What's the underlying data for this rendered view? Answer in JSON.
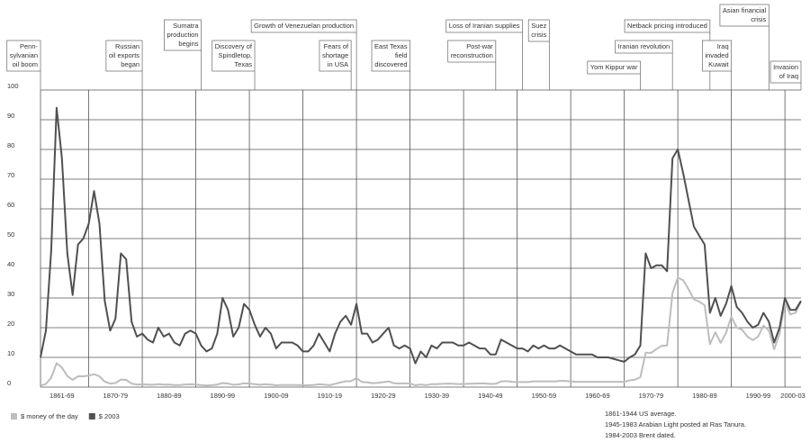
{
  "chart_data": {
    "type": "line",
    "x": [
      1861,
      1862,
      1863,
      1864,
      1865,
      1866,
      1867,
      1868,
      1869,
      1870,
      1871,
      1872,
      1873,
      1874,
      1875,
      1876,
      1877,
      1878,
      1879,
      1880,
      1881,
      1882,
      1883,
      1884,
      1885,
      1886,
      1887,
      1888,
      1889,
      1890,
      1891,
      1892,
      1893,
      1894,
      1895,
      1896,
      1897,
      1898,
      1899,
      1900,
      1901,
      1902,
      1903,
      1904,
      1905,
      1906,
      1907,
      1908,
      1909,
      1910,
      1911,
      1912,
      1913,
      1914,
      1915,
      1916,
      1917,
      1918,
      1919,
      1920,
      1921,
      1922,
      1923,
      1924,
      1925,
      1926,
      1927,
      1928,
      1929,
      1930,
      1931,
      1932,
      1933,
      1934,
      1935,
      1936,
      1937,
      1938,
      1939,
      1940,
      1941,
      1942,
      1943,
      1944,
      1945,
      1946,
      1947,
      1948,
      1949,
      1950,
      1951,
      1952,
      1953,
      1954,
      1955,
      1956,
      1957,
      1958,
      1959,
      1960,
      1961,
      1962,
      1963,
      1964,
      1965,
      1966,
      1967,
      1968,
      1969,
      1970,
      1971,
      1972,
      1973,
      1974,
      1975,
      1976,
      1977,
      1978,
      1979,
      1980,
      1981,
      1982,
      1983,
      1984,
      1985,
      1986,
      1987,
      1988,
      1989,
      1990,
      1991,
      1992,
      1993,
      1994,
      1995,
      1996,
      1997,
      1998,
      1999,
      2000,
      2001,
      2002,
      2003
    ],
    "series": [
      {
        "name": "$ money of the day",
        "color": "#bdbdbd",
        "values": [
          0.49,
          1.05,
          3.15,
          8.06,
          6.59,
          3.74,
          2.41,
          3.63,
          3.64,
          3.86,
          4.34,
          3.64,
          1.83,
          1.17,
          1.35,
          2.56,
          2.42,
          1.19,
          0.86,
          0.95,
          0.86,
          0.78,
          1.0,
          0.84,
          0.88,
          0.71,
          0.67,
          0.88,
          0.94,
          0.87,
          0.67,
          0.56,
          0.64,
          0.84,
          1.36,
          1.18,
          0.79,
          0.91,
          1.29,
          1.19,
          0.96,
          0.8,
          0.94,
          0.86,
          0.62,
          0.73,
          0.72,
          0.72,
          0.7,
          0.61,
          0.61,
          0.74,
          0.95,
          0.81,
          0.64,
          1.1,
          1.56,
          1.98,
          2.01,
          3.07,
          1.73,
          1.61,
          1.34,
          1.43,
          1.68,
          1.88,
          1.3,
          1.17,
          1.27,
          1.19,
          0.65,
          0.87,
          0.67,
          1.0,
          0.97,
          1.09,
          1.18,
          1.13,
          1.02,
          1.02,
          1.14,
          1.19,
          1.2,
          1.21,
          1.05,
          1.12,
          1.9,
          1.99,
          1.78,
          1.71,
          1.71,
          1.71,
          1.93,
          1.93,
          1.93,
          1.93,
          1.9,
          2.08,
          2.08,
          1.9,
          1.8,
          1.8,
          1.8,
          1.8,
          1.8,
          1.8,
          1.8,
          1.8,
          1.8,
          1.8,
          2.24,
          2.48,
          3.29,
          11.58,
          11.53,
          12.8,
          13.92,
          14.02,
          31.61,
          36.83,
          35.93,
          32.97,
          29.55,
          28.78,
          27.56,
          14.43,
          18.44,
          14.92,
          18.23,
          23.73,
          20.0,
          19.32,
          16.97,
          15.82,
          17.02,
          20.67,
          19.09,
          12.72,
          17.97,
          28.5,
          24.44,
          25.02,
          28.83
        ]
      },
      {
        "name": "$ 2003",
        "color": "#505050",
        "values": [
          10,
          19,
          46,
          94,
          77,
          45,
          31,
          48,
          50,
          55,
          66,
          55,
          29,
          19,
          23,
          45,
          43,
          22,
          17,
          18,
          16,
          15,
          20,
          17,
          18,
          15,
          14,
          18,
          19,
          18,
          14,
          12,
          13,
          18,
          30,
          26,
          17,
          20,
          28,
          26,
          21,
          17,
          20,
          18,
          13,
          15,
          15,
          15,
          14,
          12,
          12,
          14,
          18,
          15,
          12,
          18,
          22,
          24,
          21,
          28,
          18,
          18,
          15,
          16,
          18,
          20,
          14,
          13,
          14,
          13,
          8,
          12,
          10,
          14,
          13,
          15,
          15,
          15,
          14,
          14,
          15,
          14,
          13,
          13,
          11,
          11,
          16,
          15,
          14,
          13,
          13,
          12,
          14,
          13,
          14,
          13,
          13,
          14,
          13,
          12,
          11,
          11,
          11,
          11,
          10,
          10,
          10,
          9.5,
          9,
          8.5,
          10,
          11,
          14,
          45,
          40,
          41,
          41,
          39,
          77,
          80,
          72,
          63,
          54,
          51,
          48,
          25,
          30,
          24,
          28,
          34,
          27,
          25,
          22,
          20,
          21,
          25,
          22,
          15,
          20,
          30,
          26,
          26,
          29
        ]
      }
    ],
    "xlim": [
      1861,
      2003
    ],
    "xticks": [
      {
        "value": 1865,
        "label": "1861-69"
      },
      {
        "value": 1875,
        "label": "1870-79"
      },
      {
        "value": 1885,
        "label": "1880-89"
      },
      {
        "value": 1895,
        "label": "1890-99"
      },
      {
        "value": 1905,
        "label": "1900-09"
      },
      {
        "value": 1915,
        "label": "1910-19"
      },
      {
        "value": 1925,
        "label": "1920-29"
      },
      {
        "value": 1935,
        "label": "1930-39"
      },
      {
        "value": 1945,
        "label": "1940-49"
      },
      {
        "value": 1955,
        "label": "1950-59"
      },
      {
        "value": 1965,
        "label": "1960-69"
      },
      {
        "value": 1975,
        "label": "1970-79"
      },
      {
        "value": 1985,
        "label": "1980-89"
      },
      {
        "value": 1995,
        "label": "1990-99"
      },
      {
        "value": 2001.5,
        "label": "2000-03"
      }
    ],
    "xgrid_lines": [
      1870,
      1880,
      1890,
      1900,
      1910,
      1920,
      1930,
      1940,
      1950,
      1960,
      1970,
      1980,
      1990,
      2000
    ],
    "ylim": [
      0,
      100
    ],
    "yticks": [
      0,
      10,
      20,
      30,
      40,
      50,
      60,
      70,
      80,
      90,
      100
    ],
    "grid": true,
    "annotations": [
      {
        "x": 1861,
        "lines": [
          "Penn-",
          "sylvanian",
          "oil boom"
        ]
      },
      {
        "x": 1880,
        "lines": [
          "Russian",
          "oil exports",
          "began"
        ]
      },
      {
        "x": 1891,
        "lines": [
          "Sumatra",
          "production",
          "begins"
        ]
      },
      {
        "x": 1901,
        "lines": [
          "Discovery of",
          "Spindletop,",
          "Texas"
        ]
      },
      {
        "x": 1920,
        "lines": [
          "Growth of Venezuelan production"
        ]
      },
      {
        "x": 1919,
        "lines": [
          "Fears of",
          "shortage",
          "in USA"
        ]
      },
      {
        "x": 1930,
        "lines": [
          "East Texas",
          "field",
          "discovered"
        ]
      },
      {
        "x": 1951,
        "lines": [
          "Loss of Iranian supplies"
        ]
      },
      {
        "x": 1946,
        "lines": [
          "Post-war",
          "reconstruction"
        ]
      },
      {
        "x": 1956,
        "lines": [
          "Suez",
          "crisis"
        ]
      },
      {
        "x": 1986,
        "lines": [
          "Netback pricing introduced"
        ]
      },
      {
        "x": 1979,
        "lines": [
          "Iranian revolution"
        ]
      },
      {
        "x": 1973,
        "lines": [
          "Yom Kippur war"
        ]
      },
      {
        "x": 1997,
        "lines": [
          "Asian financial",
          "crisis"
        ]
      },
      {
        "x": 1990,
        "lines": [
          "Iraq",
          "invaded",
          "Kuwait"
        ]
      },
      {
        "x": 2003,
        "lines": [
          "Invasion",
          "of Iraq"
        ]
      }
    ],
    "notes": [
      "1861-1944 US average.",
      "1945-1983 Arabian Light posted at Ras Tanura.",
      "1984-2003 Brent dated."
    ]
  }
}
